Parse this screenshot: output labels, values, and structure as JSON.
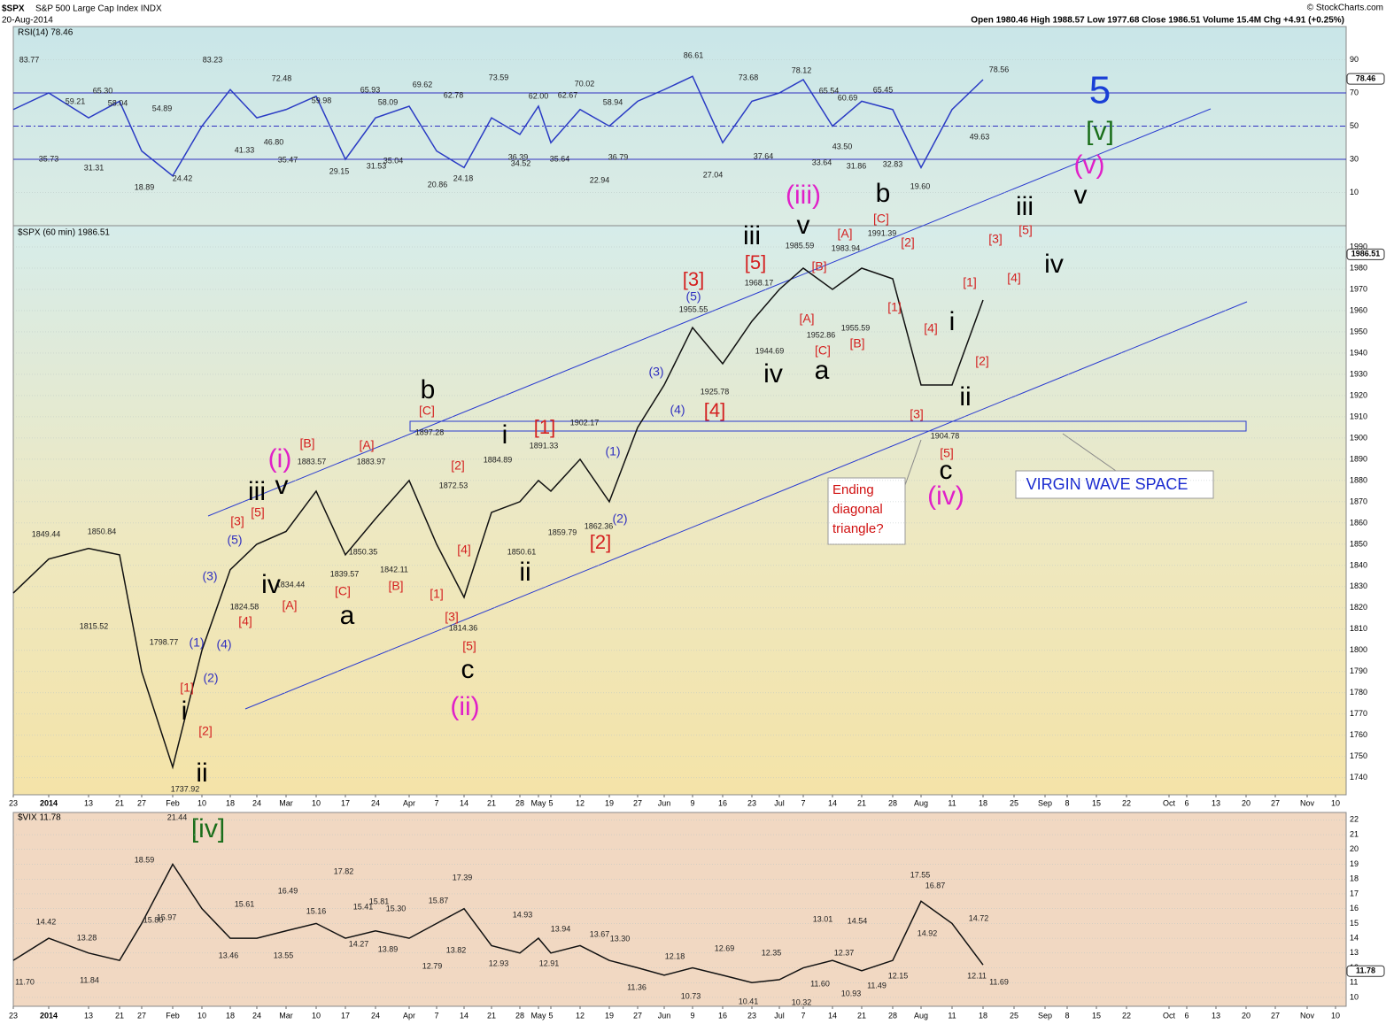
{
  "header": {
    "symbol": "$SPX",
    "name": "S&P 500 Large Cap Index INDX",
    "date": "20-Aug-2014",
    "stats": "Open 1980.46  High 1988.57  Low 1977.68  Close 1986.51  Volume 15.4M  Chg +4.91 (+0.25%)",
    "credit": "© StockCharts.com"
  },
  "chart_data": [
    {
      "type": "line",
      "title": "RSI(14) 78.46",
      "last_value": 78.46,
      "series": [
        {
          "name": "RSI(14)",
          "color": "#2a3bc4",
          "values": [
            60,
            70,
            55,
            65,
            35,
            20,
            50,
            72,
            55,
            60,
            68,
            30,
            55,
            62,
            35,
            25,
            55,
            45,
            62,
            40,
            60,
            50,
            65,
            72,
            80,
            40,
            65,
            70,
            78,
            50,
            65,
            60,
            25,
            60,
            78,
            null,
            null,
            null,
            null,
            null,
            null,
            null,
            null,
            null,
            null,
            null,
            null
          ]
        }
      ],
      "ylim": [
        -10,
        110
      ],
      "yticks": [
        10,
        30,
        50,
        70,
        90
      ],
      "hlines": [
        70,
        50,
        30
      ],
      "label_groups": [
        {
          "color": "#222",
          "size": "small",
          "texts": [
            "83.77",
            "83.23",
            "72.48",
            "73.59",
            "70.02",
            "86.61",
            "73.68",
            "78.12",
            "78.56",
            "65.30",
            "59.21",
            "58.04",
            "54.89",
            "59.98",
            "65.93",
            "58.09",
            "69.62",
            "62.78",
            "62.00",
            "62.67",
            "58.94",
            "65.54",
            "60.69",
            "65.45",
            "35.73",
            "31.31",
            "18.89",
            "24.42",
            "41.33",
            "46.80",
            "35.47",
            "29.15",
            "31.53",
            "35.04",
            "20.86",
            "24.18",
            "36.39",
            "34.52",
            "35.64",
            "22.94",
            "36.79",
            "27.04",
            "37.64",
            "43.50",
            "33.64",
            "31.86",
            "32.83",
            "19.60",
            "49.63"
          ]
        }
      ]
    },
    {
      "type": "line",
      "title": "$SPX (60 min) 1986.51",
      "last_value": 1986.51,
      "categories": [
        "23",
        "2014",
        "13",
        "21",
        "27",
        "Feb",
        "10",
        "18",
        "24",
        "Mar",
        "10",
        "17",
        "24",
        "Apr",
        "7",
        "14",
        "21",
        "28",
        "May",
        "5",
        "12",
        "19",
        "27",
        "Jun",
        "9",
        "16",
        "23",
        "Jul",
        "7",
        "14",
        "21",
        "28",
        "Aug",
        "11",
        "18",
        "25",
        "Sep",
        "8",
        "15",
        "22",
        "Oct",
        "6",
        "13",
        "20",
        "27",
        "Nov",
        "10"
      ],
      "series": [
        {
          "name": "$SPX",
          "color": "#111111",
          "values": [
            1827,
            1843,
            1848,
            1845,
            1790,
            1745,
            1800,
            1838,
            1850,
            1856,
            1875,
            1845,
            1862,
            1880,
            1850,
            1825,
            1865,
            1870,
            1880,
            1875,
            1890,
            1870,
            1905,
            1925,
            1952,
            1935,
            1955,
            1970,
            1980,
            1970,
            1980,
            1975,
            1925,
            1925,
            1965,
            null,
            null,
            null,
            null,
            null,
            null,
            null,
            null,
            null,
            null,
            null,
            null
          ]
        }
      ],
      "ylim": [
        1732,
        2000
      ],
      "yticks": [
        1740,
        1750,
        1760,
        1770,
        1780,
        1790,
        1800,
        1810,
        1820,
        1830,
        1840,
        1850,
        1860,
        1870,
        1880,
        1890,
        1900,
        1910,
        1920,
        1930,
        1940,
        1950,
        1960,
        1970,
        1980,
        1990
      ],
      "box_note": "VIRGIN WAVE SPACE",
      "question_note": [
        "Ending",
        "diagonal",
        "triangle?"
      ],
      "label_groups": [
        {
          "color": "#000000",
          "size": "large",
          "texts": [
            "v",
            "iii",
            "iv",
            "b",
            "v",
            "iii",
            "iv",
            "a",
            "i",
            "ii",
            "c",
            "b",
            "i",
            "ii",
            "c",
            "v",
            "iii",
            "iv",
            "a",
            "i",
            "ii"
          ]
        },
        {
          "color": "#e020c8",
          "size": "large",
          "texts": [
            "(v)",
            "(iii)",
            "(iv)",
            "(ii)",
            "(i)"
          ]
        },
        {
          "color": "#1a6e1a",
          "size": "large",
          "texts": [
            "[v]",
            "[iv]"
          ]
        },
        {
          "color": "#1a3fd6",
          "size": "huge",
          "texts": [
            "5"
          ]
        },
        {
          "color": "#d42020",
          "size": "mid",
          "texts": [
            "[3]",
            "[5]",
            "[4]",
            "[1]",
            "[2]"
          ]
        },
        {
          "color": "#d42020",
          "size": "wave",
          "texts": [
            "[C]",
            "[B]",
            "[A]",
            "[3]",
            "[5]",
            "[4]",
            "[A]",
            "[C]",
            "[B]",
            "[2]",
            "[4]",
            "[1]",
            "[3]",
            "[5]",
            "[1]",
            "[2]",
            "[A]",
            "[C]",
            "[2]",
            "[B]",
            "[A]",
            "[C]",
            "[B]",
            "[1]",
            "[4]",
            "[3]",
            "[5]",
            "[2]",
            "[1]",
            "[3]",
            "[5]",
            "[4]"
          ]
        },
        {
          "color": "#3030c0",
          "size": "wave",
          "texts": [
            "(5)",
            "(3)",
            "(4)",
            "(1)",
            "(2)",
            "(5)",
            "(3)",
            "(1)",
            "(4)",
            "(2)"
          ]
        },
        {
          "color": "#222222",
          "size": "small",
          "texts": [
            "1849.44",
            "1850.84",
            "1815.52",
            "1798.77",
            "1737.92",
            "1824.58",
            "1883.57",
            "1883.97",
            "1834.44",
            "1839.57",
            "1850.35",
            "1842.11",
            "1897.28",
            "1872.53",
            "1814.36",
            "1884.89",
            "1850.61",
            "1891.33",
            "1859.79",
            "1902.17",
            "1862.36",
            "1955.55",
            "1925.78",
            "1968.17",
            "1944.69",
            "1985.59",
            "1983.94",
            "1991.39",
            "1952.86",
            "1955.59",
            "1904.78"
          ]
        }
      ]
    },
    {
      "type": "line",
      "title": "$VIX 11.78",
      "last_value": 11.78,
      "categories": [
        "23",
        "2014",
        "13",
        "21",
        "27",
        "Feb",
        "10",
        "18",
        "24",
        "Mar",
        "10",
        "17",
        "24",
        "Apr",
        "7",
        "14",
        "21",
        "28",
        "May",
        "5",
        "12",
        "19",
        "27",
        "Jun",
        "9",
        "16",
        "23",
        "Jul",
        "7",
        "14",
        "21",
        "28",
        "Aug",
        "11",
        "18",
        "25",
        "Sep",
        "8",
        "15",
        "22",
        "Oct",
        "6",
        "13",
        "20",
        "27",
        "Nov",
        "10"
      ],
      "series": [
        {
          "name": "$VIX",
          "color": "#111111",
          "values": [
            12.5,
            14,
            13,
            12.5,
            15,
            19,
            16,
            14,
            14,
            14.5,
            15,
            14,
            14.5,
            14,
            15,
            16,
            13.5,
            13,
            14,
            13,
            13.5,
            12.5,
            12,
            11.5,
            12,
            11.5,
            11,
            11.2,
            12,
            12.5,
            11.8,
            12.5,
            16.5,
            15,
            12.2,
            null,
            null,
            null,
            null,
            null,
            null,
            null,
            null,
            null,
            null,
            null,
            null
          ]
        }
      ],
      "ylim": [
        9.4,
        22.5
      ],
      "yticks": [
        10,
        11,
        12,
        13,
        14,
        15,
        16,
        17,
        18,
        19,
        20,
        21,
        22
      ],
      "label_groups": [
        {
          "color": "#222",
          "size": "small",
          "texts": [
            "21.44",
            "18.59",
            "15.80",
            "14.42",
            "13.28",
            "11.70",
            "11.84",
            "15.97",
            "13.46",
            "15.61",
            "16.49",
            "17.82",
            "13.55",
            "15.16",
            "15.41",
            "15.81",
            "15.30",
            "14.27",
            "13.89",
            "15.87",
            "17.39",
            "12.79",
            "13.82",
            "14.93",
            "13.94",
            "12.93",
            "12.91",
            "13.67",
            "13.30",
            "11.36",
            "12.18",
            "12.69",
            "10.73",
            "10.41",
            "12.35",
            "10.32",
            "13.01",
            "14.54",
            "12.37",
            "11.60",
            "10.93",
            "11.49",
            "12.15",
            "17.55",
            "16.87",
            "14.92",
            "14.72",
            "12.11",
            "11.69"
          ]
        }
      ]
    }
  ]
}
